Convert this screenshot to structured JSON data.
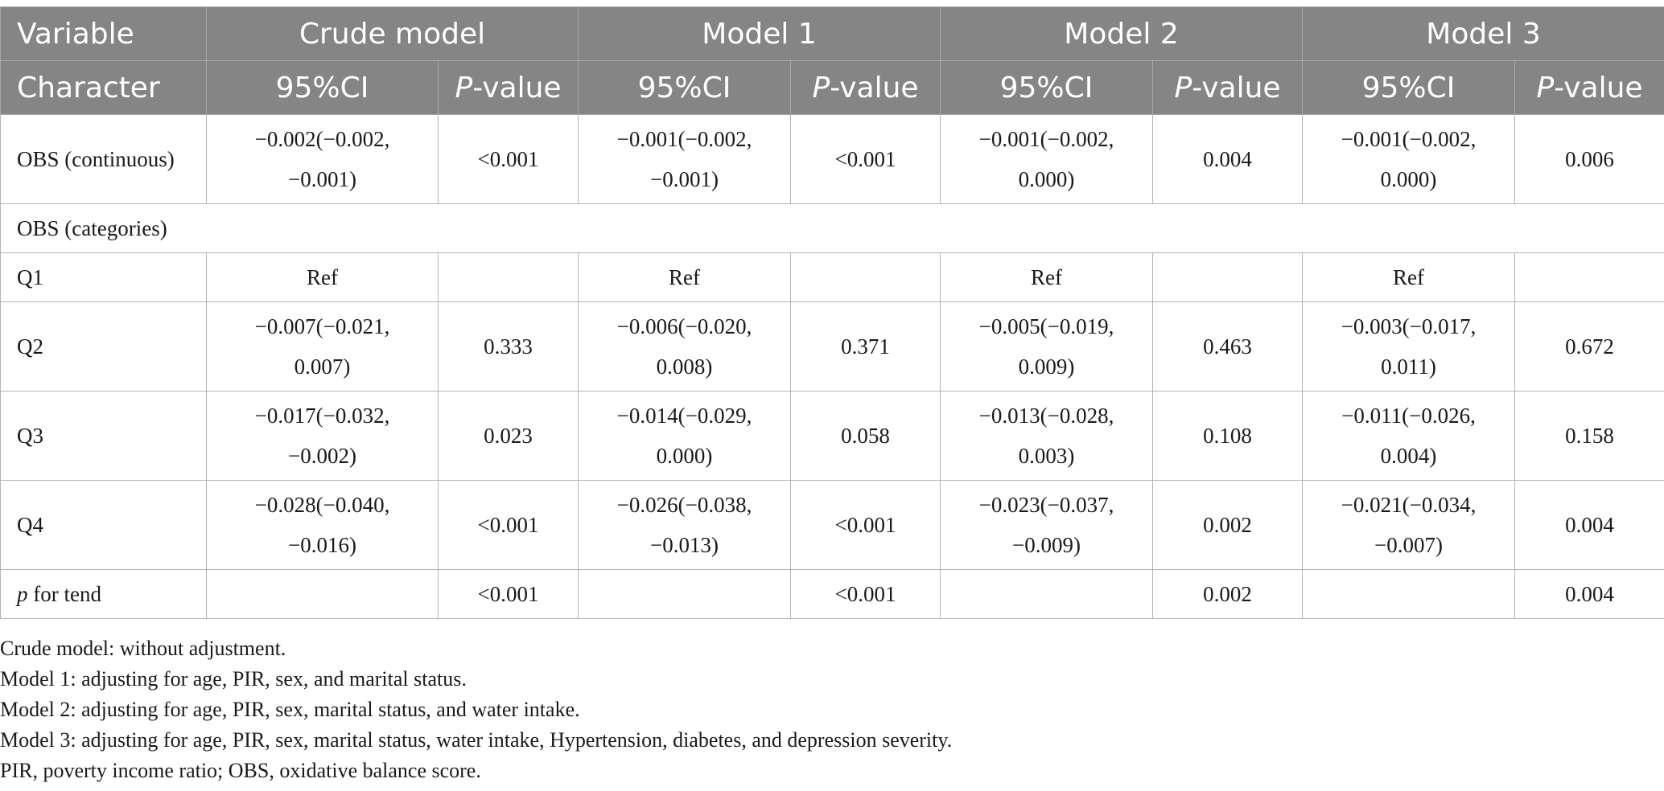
{
  "header": {
    "row1": {
      "variable": "Variable",
      "models": [
        "Crude model",
        "Model 1",
        "Model 2",
        "Model 3"
      ]
    },
    "row2": {
      "character": "Character",
      "ci": "95%CI",
      "p_italic": "P",
      "p_suffix": "-value"
    }
  },
  "rows": {
    "obs_continuous": {
      "label": "OBS (continuous)",
      "cells": [
        {
          "ci1": "−0.002(−0.002,",
          "ci2": "−0.001)",
          "p": "<0.001"
        },
        {
          "ci1": "−0.001(−0.002,",
          "ci2": "−0.001)",
          "p": "<0.001"
        },
        {
          "ci1": "−0.001(−0.002,",
          "ci2": "0.000)",
          "p": "0.004"
        },
        {
          "ci1": "−0.001(−0.002,",
          "ci2": "0.000)",
          "p": "0.006"
        }
      ]
    },
    "obs_categories": {
      "label": "OBS (categories)"
    },
    "q1": {
      "label": "Q1",
      "ref": "Ref"
    },
    "q2": {
      "label": "Q2",
      "cells": [
        {
          "ci1": "−0.007(−0.021,",
          "ci2": "0.007)",
          "p": "0.333"
        },
        {
          "ci1": "−0.006(−0.020,",
          "ci2": "0.008)",
          "p": "0.371"
        },
        {
          "ci1": "−0.005(−0.019,",
          "ci2": "0.009)",
          "p": "0.463"
        },
        {
          "ci1": "−0.003(−0.017,",
          "ci2": "0.011)",
          "p": "0.672"
        }
      ]
    },
    "q3": {
      "label": "Q3",
      "cells": [
        {
          "ci1": "−0.017(−0.032,",
          "ci2": "−0.002)",
          "p": "0.023"
        },
        {
          "ci1": "−0.014(−0.029,",
          "ci2": "0.000)",
          "p": "0.058"
        },
        {
          "ci1": "−0.013(−0.028,",
          "ci2": "0.003)",
          "p": "0.108"
        },
        {
          "ci1": "−0.011(−0.026,",
          "ci2": "0.004)",
          "p": "0.158"
        }
      ]
    },
    "q4": {
      "label": "Q4",
      "cells": [
        {
          "ci1": "−0.028(−0.040,",
          "ci2": "−0.016)",
          "p": "<0.001"
        },
        {
          "ci1": "−0.026(−0.038,",
          "ci2": "−0.013)",
          "p": "<0.001"
        },
        {
          "ci1": "−0.023(−0.037,",
          "ci2": "−0.009)",
          "p": "0.002"
        },
        {
          "ci1": "−0.021(−0.034,",
          "ci2": "−0.007)",
          "p": "0.004"
        }
      ]
    },
    "p_trend": {
      "label_italic": "p",
      "label_suffix": " for tend",
      "p": [
        "<0.001",
        "<0.001",
        "0.002",
        "0.004"
      ]
    }
  },
  "notes": [
    "Crude model: without adjustment.",
    "Model 1: adjusting for age, PIR, sex, and marital status.",
    "Model 2: adjusting for age, PIR, sex, marital status, and water intake.",
    "Model 3: adjusting for age, PIR, sex, marital status, water intake, Hypertension, diabetes, and depression severity.",
    "PIR, poverty income ratio; OBS, oxidative balance score."
  ]
}
